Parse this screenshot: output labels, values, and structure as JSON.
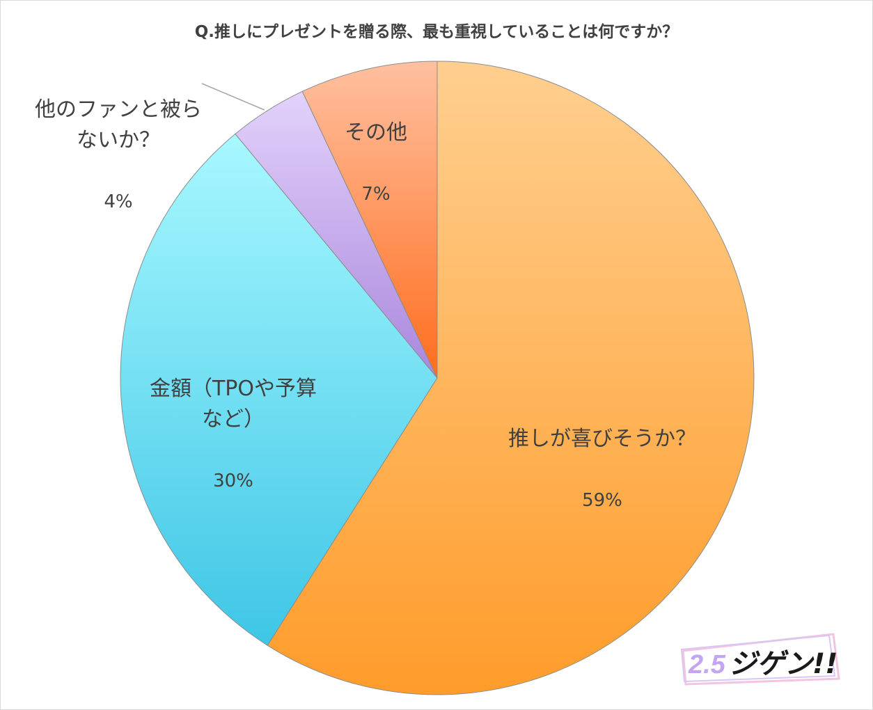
{
  "chart_data": {
    "type": "pie",
    "title": "Q.推しにプレゼントを贈る際、最も重視していることは何ですか？",
    "slices": [
      {
        "label": "推しが喜びそうか？",
        "value": 59,
        "value_label": "59%",
        "color_light": "#ffcf8f",
        "color_dark": "#ff9c2b"
      },
      {
        "label": "金額（TPOや予算\nなど）",
        "value": 30,
        "value_label": "30%",
        "color_light": "#a8f8ff",
        "color_dark": "#3ec6e6"
      },
      {
        "label": "他のファンと被ら\nないか？",
        "value": 4,
        "value_label": "4%",
        "color_light": "#e3d2fb",
        "color_dark": "#a987dd"
      },
      {
        "label": "その他",
        "value": 7,
        "value_label": "7%",
        "color_light": "#ffc0a0",
        "color_dark": "#ff6d1d"
      }
    ],
    "start_angle_deg": 0,
    "direction": "clockwise",
    "legend": "none"
  },
  "watermark": {
    "text": "2.5ジゲン!!"
  }
}
